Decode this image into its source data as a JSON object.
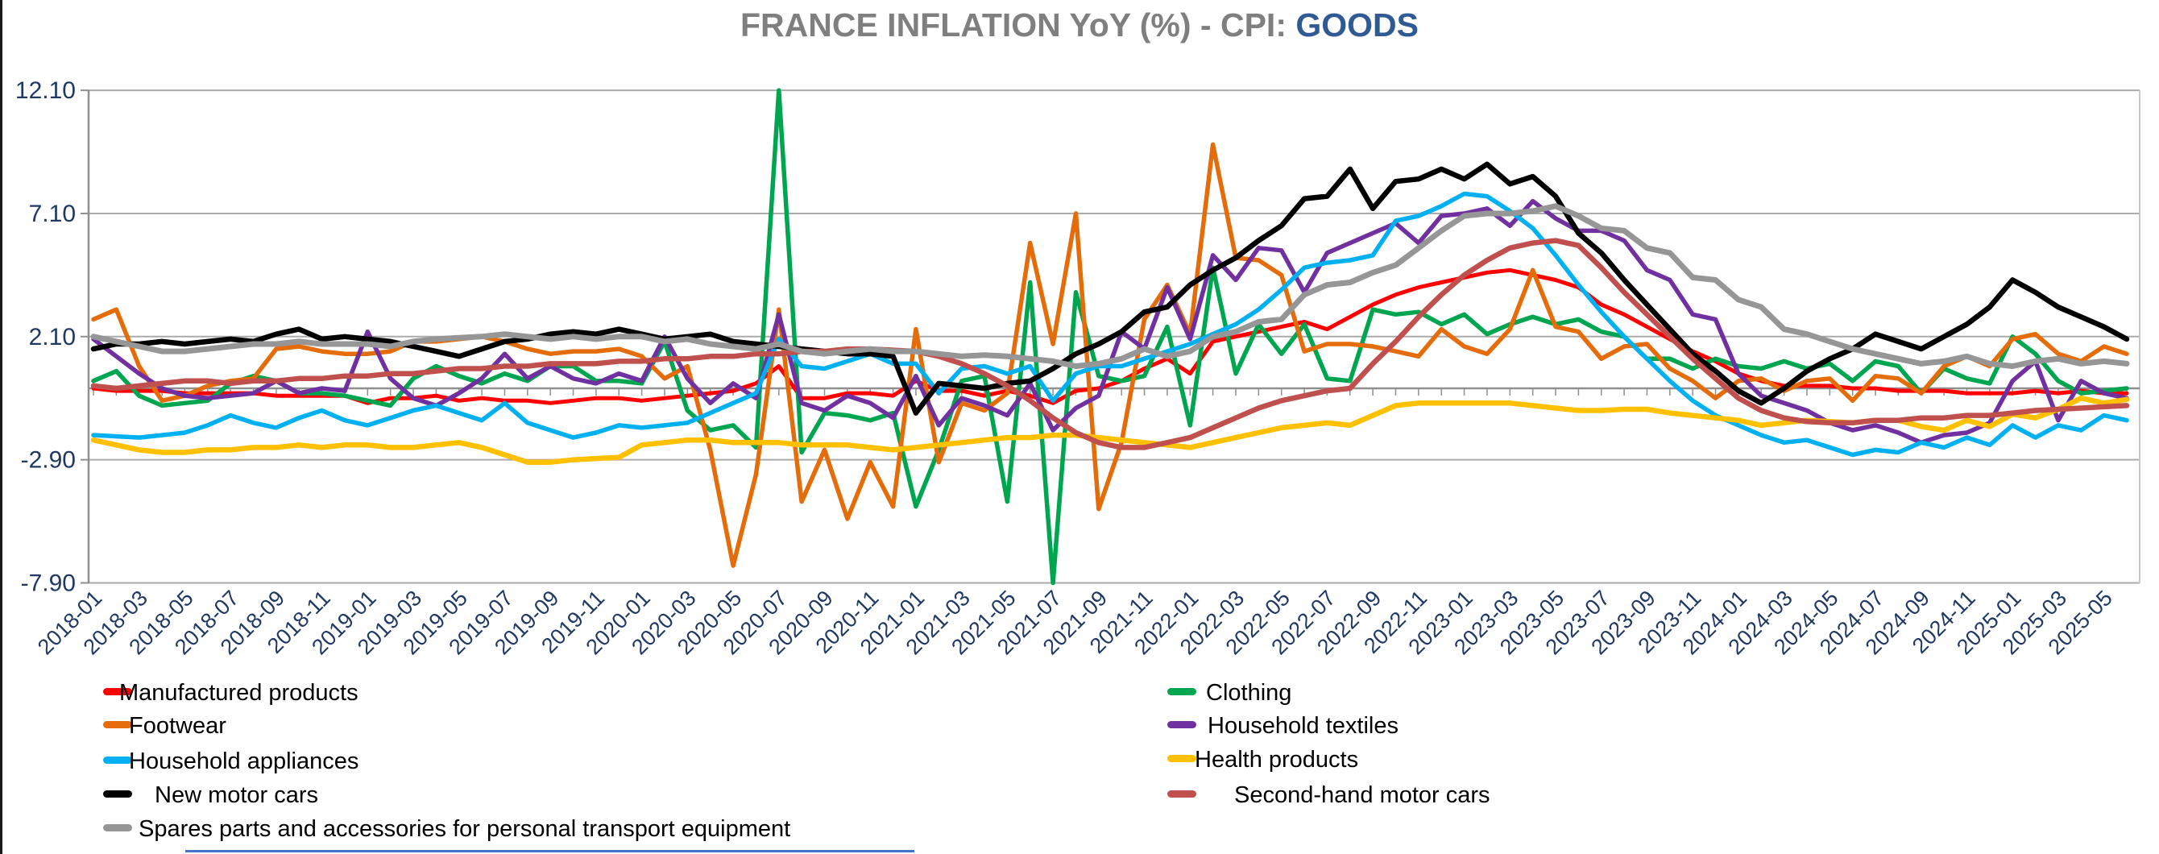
{
  "title": {
    "main": "FRANCE INFLATION YoY (%) - CPI: ",
    "accent": "GOODS"
  },
  "colors": {
    "title_gray": "#7F7F7F",
    "title_accent_blue": "#305A94",
    "axis_label_navy": "#1F3864",
    "gridline_gray": "#ABABAB",
    "axis_line_gray": "#8F8F8F",
    "bottom_accent_blue": "#4472C4"
  },
  "chart_data": {
    "type": "line",
    "title": "FRANCE INFLATION YoY (%) - CPI: GOODS",
    "xlabel": "",
    "ylabel": "",
    "x_start": "2018-01",
    "x_end": "2025-06",
    "months_total": 90,
    "grid": "horizontal-only",
    "legend_position": "bottom-two-columns",
    "ylim": [
      -7.9,
      12.1
    ],
    "y_ticks": [
      "12.10",
      "7.10",
      "2.10",
      "-2.90",
      "-7.90"
    ],
    "y_tick_values": [
      12.1,
      7.1,
      2.1,
      -2.9,
      -7.9
    ],
    "x_tick_labels": [
      "2018-01",
      "2018-03",
      "2018-05",
      "2018-07",
      "2018-09",
      "2018-11",
      "2019-01",
      "2019-03",
      "2019-05",
      "2019-07",
      "2019-09",
      "2019-11",
      "2020-01",
      "2020-03",
      "2020-05",
      "2020-07",
      "2020-09",
      "2020-11",
      "2021-01",
      "2021-03",
      "2021-05",
      "2021-07",
      "2021-09",
      "2021-11",
      "2022-01",
      "2022-03",
      "2022-05",
      "2022-07",
      "2022-09",
      "2022-11",
      "2023-01",
      "2023-03",
      "2023-05",
      "2023-07",
      "2023-09",
      "2023-11",
      "2024-01",
      "2024-03",
      "2024-05",
      "2024-07",
      "2024-09",
      "2024-11",
      "2025-01",
      "2025-03",
      "2025-05"
    ],
    "series": [
      {
        "name": "Manufactured products",
        "color": "#FF0000",
        "line_width": 5,
        "values": [
          0.0,
          -0.1,
          -0.1,
          -0.1,
          -0.2,
          -0.2,
          -0.2,
          -0.2,
          -0.3,
          -0.3,
          -0.3,
          -0.3,
          -0.6,
          -0.4,
          -0.4,
          -0.3,
          -0.5,
          -0.4,
          -0.5,
          -0.5,
          -0.6,
          -0.5,
          -0.4,
          -0.4,
          -0.5,
          -0.4,
          -0.3,
          -0.2,
          -0.1,
          0.2,
          0.9,
          -0.4,
          -0.4,
          -0.2,
          -0.2,
          -0.3,
          0.3,
          -0.1,
          -0.1,
          -0.3,
          -0.1,
          -0.3,
          -0.6,
          -0.1,
          0.0,
          0.3,
          0.8,
          1.2,
          0.6,
          1.9,
          2.1,
          2.3,
          2.5,
          2.7,
          2.4,
          2.9,
          3.4,
          3.8,
          4.1,
          4.3,
          4.5,
          4.7,
          4.8,
          4.6,
          4.4,
          4.1,
          3.4,
          3.0,
          2.5,
          2.0,
          1.5,
          1.1,
          0.6,
          0.3,
          0.1,
          0.1,
          0.1,
          0.0,
          0.0,
          -0.1,
          -0.1,
          -0.1,
          -0.2,
          -0.2,
          -0.2,
          -0.1,
          -0.2,
          -0.1,
          -0.2,
          -0.2
        ]
      },
      {
        "name": "Clothing",
        "color": "#00A550",
        "line_width": 5.5,
        "values": [
          0.3,
          0.7,
          -0.3,
          -0.7,
          -0.6,
          -0.5,
          0.2,
          0.5,
          0.3,
          -0.2,
          -0.2,
          -0.3,
          -0.5,
          -0.7,
          0.4,
          0.9,
          0.5,
          0.2,
          0.6,
          0.3,
          0.9,
          0.9,
          0.3,
          0.3,
          0.2,
          1.9,
          -0.9,
          -1.7,
          -1.5,
          -2.4,
          12.1,
          -2.6,
          -1.0,
          -1.1,
          -1.3,
          -1.0,
          -4.8,
          -2.5,
          0.3,
          0.5,
          -4.6,
          4.3,
          -7.9,
          3.9,
          0.5,
          0.3,
          0.5,
          2.5,
          -1.5,
          4.9,
          0.6,
          2.6,
          1.4,
          2.6,
          0.4,
          0.3,
          3.2,
          3.0,
          3.1,
          2.6,
          3.0,
          2.2,
          2.6,
          2.9,
          2.6,
          2.8,
          2.3,
          2.1,
          1.2,
          1.2,
          0.8,
          1.2,
          0.9,
          0.8,
          1.1,
          0.8,
          1.0,
          0.3,
          1.1,
          0.9,
          -0.2,
          0.8,
          0.4,
          0.2,
          2.1,
          1.4,
          0.3,
          -0.2,
          -0.1,
          0.0
        ]
      },
      {
        "name": "Footwear",
        "color": "#E46C0A",
        "line_width": 5.5,
        "values": [
          2.8,
          3.2,
          0.9,
          -0.5,
          -0.3,
          0.1,
          0.3,
          0.4,
          1.6,
          1.7,
          1.5,
          1.4,
          1.4,
          1.5,
          1.9,
          1.9,
          2.0,
          2.1,
          1.9,
          1.6,
          1.4,
          1.5,
          1.5,
          1.6,
          1.3,
          0.4,
          0.9,
          -2.5,
          -7.2,
          -3.5,
          3.2,
          -4.6,
          -2.5,
          -5.3,
          -3.0,
          -4.8,
          2.4,
          -3.0,
          -0.6,
          -0.9,
          -0.2,
          5.9,
          1.8,
          7.1,
          -4.9,
          -2.2,
          2.8,
          4.2,
          2.2,
          9.9,
          5.3,
          5.2,
          4.6,
          1.5,
          1.8,
          1.8,
          1.7,
          1.5,
          1.3,
          2.4,
          1.7,
          1.4,
          2.4,
          4.8,
          2.5,
          2.3,
          1.2,
          1.7,
          1.8,
          0.8,
          0.3,
          -0.4,
          0.3,
          0.4,
          -0.1,
          0.3,
          0.4,
          -0.5,
          0.5,
          0.4,
          -0.2,
          0.9,
          1.3,
          0.9,
          2.0,
          2.2,
          1.4,
          1.1,
          1.7,
          1.4
        ]
      },
      {
        "name": "Household textiles",
        "color": "#7030A0",
        "line_width": 5.5,
        "values": [
          2.0,
          1.3,
          0.6,
          0.0,
          -0.3,
          -0.4,
          -0.3,
          -0.2,
          0.3,
          -0.2,
          0.0,
          -0.1,
          2.3,
          0.4,
          -0.4,
          -0.7,
          -0.2,
          0.4,
          1.4,
          0.4,
          0.9,
          0.4,
          0.2,
          0.6,
          0.3,
          2.1,
          0.4,
          -0.6,
          0.2,
          -0.4,
          3.0,
          -0.6,
          -0.9,
          -0.3,
          -0.6,
          -1.2,
          0.5,
          -1.5,
          -0.4,
          -0.7,
          -1.1,
          0.2,
          -1.7,
          -0.8,
          -0.3,
          2.3,
          1.6,
          4.1,
          2.0,
          5.4,
          4.4,
          5.7,
          5.6,
          3.9,
          5.5,
          5.9,
          6.3,
          6.7,
          5.9,
          7.0,
          7.1,
          7.3,
          6.6,
          7.6,
          6.9,
          6.4,
          6.4,
          6.0,
          4.8,
          4.4,
          3.0,
          2.8,
          0.6,
          -0.3,
          -0.6,
          -0.9,
          -1.4,
          -1.7,
          -1.5,
          -1.8,
          -2.2,
          -1.9,
          -1.8,
          -1.4,
          0.3,
          1.1,
          -1.3,
          0.3,
          -0.2,
          -0.4
        ]
      },
      {
        "name": "Household appliances",
        "color": "#00B0F0",
        "line_width": 5.5,
        "values": [
          -1.9,
          -1.95,
          -2.0,
          -1.9,
          -1.8,
          -1.5,
          -1.1,
          -1.4,
          -1.6,
          -1.2,
          -0.9,
          -1.3,
          -1.5,
          -1.2,
          -0.9,
          -0.7,
          -1.0,
          -1.3,
          -0.6,
          -1.4,
          -1.7,
          -2.0,
          -1.8,
          -1.5,
          -1.6,
          -1.5,
          -1.4,
          -1.0,
          -0.6,
          -0.2,
          2.0,
          0.9,
          0.8,
          1.1,
          1.4,
          1.0,
          1.0,
          -0.2,
          0.8,
          0.9,
          0.6,
          0.9,
          -0.5,
          0.6,
          0.9,
          0.9,
          1.2,
          1.5,
          1.8,
          2.2,
          2.6,
          3.2,
          4.0,
          4.9,
          5.1,
          5.2,
          5.4,
          6.8,
          7.0,
          7.4,
          7.9,
          7.8,
          7.2,
          6.5,
          5.4,
          4.2,
          3.1,
          2.1,
          1.2,
          0.3,
          -0.5,
          -1.1,
          -1.5,
          -1.9,
          -2.2,
          -2.1,
          -2.4,
          -2.7,
          -2.5,
          -2.6,
          -2.2,
          -2.4,
          -2.0,
          -2.3,
          -1.5,
          -2.0,
          -1.5,
          -1.7,
          -1.1,
          -1.3
        ]
      },
      {
        "name": "Health products",
        "color": "#FFC000",
        "line_width": 6.5,
        "values": [
          -2.1,
          -2.3,
          -2.5,
          -2.6,
          -2.6,
          -2.5,
          -2.5,
          -2.4,
          -2.4,
          -2.3,
          -2.4,
          -2.3,
          -2.3,
          -2.4,
          -2.4,
          -2.3,
          -2.2,
          -2.4,
          -2.7,
          -3.0,
          -3.0,
          -2.9,
          -2.85,
          -2.8,
          -2.3,
          -2.2,
          -2.1,
          -2.1,
          -2.2,
          -2.2,
          -2.2,
          -2.3,
          -2.3,
          -2.3,
          -2.4,
          -2.5,
          -2.4,
          -2.3,
          -2.2,
          -2.1,
          -2.0,
          -2.0,
          -1.9,
          -1.9,
          -2.0,
          -2.1,
          -2.2,
          -2.3,
          -2.4,
          -2.2,
          -2.0,
          -1.8,
          -1.6,
          -1.5,
          -1.4,
          -1.5,
          -1.1,
          -0.7,
          -0.6,
          -0.6,
          -0.6,
          -0.6,
          -0.6,
          -0.7,
          -0.8,
          -0.9,
          -0.9,
          -0.85,
          -0.85,
          -1.0,
          -1.1,
          -1.2,
          -1.3,
          -1.5,
          -1.4,
          -1.3,
          -1.35,
          -1.4,
          -1.3,
          -1.3,
          -1.55,
          -1.7,
          -1.3,
          -1.55,
          -1.05,
          -1.2,
          -0.85,
          -0.4,
          -0.6,
          -0.45
        ]
      },
      {
        "name": "New motor cars",
        "color": "#000000",
        "line_width": 6.5,
        "values": [
          1.6,
          1.8,
          1.8,
          1.9,
          1.8,
          1.9,
          2.0,
          1.9,
          2.2,
          2.4,
          2.0,
          2.1,
          2.0,
          1.9,
          1.7,
          1.5,
          1.3,
          1.6,
          1.9,
          2.0,
          2.2,
          2.3,
          2.2,
          2.4,
          2.2,
          2.0,
          2.1,
          2.2,
          1.9,
          1.8,
          1.7,
          1.6,
          1.5,
          1.4,
          1.4,
          1.3,
          -1.0,
          0.2,
          0.1,
          0.0,
          0.2,
          0.3,
          0.8,
          1.4,
          1.8,
          2.3,
          3.1,
          3.3,
          4.2,
          4.8,
          5.3,
          6.0,
          6.6,
          7.7,
          7.8,
          8.9,
          7.3,
          8.4,
          8.5,
          8.9,
          8.5,
          9.1,
          8.3,
          8.6,
          7.8,
          6.3,
          5.5,
          4.4,
          3.4,
          2.4,
          1.4,
          0.7,
          -0.1,
          -0.6,
          0.0,
          0.7,
          1.2,
          1.6,
          2.2,
          1.9,
          1.6,
          2.1,
          2.6,
          3.3,
          4.4,
          3.9,
          3.3,
          2.9,
          2.5,
          2.0
        ]
      },
      {
        "name": "Second-hand motor cars",
        "color": "#C0504D",
        "line_width": 6.5,
        "values": [
          0.1,
          0.0,
          0.1,
          0.2,
          0.3,
          0.3,
          0.2,
          0.3,
          0.3,
          0.4,
          0.4,
          0.5,
          0.5,
          0.6,
          0.6,
          0.7,
          0.8,
          0.8,
          0.9,
          0.9,
          1.0,
          1.0,
          1.0,
          1.1,
          1.1,
          1.2,
          1.2,
          1.3,
          1.3,
          1.4,
          1.4,
          1.5,
          1.5,
          1.6,
          1.6,
          1.55,
          1.5,
          1.3,
          1.0,
          0.6,
          0.1,
          -0.5,
          -1.2,
          -1.8,
          -2.2,
          -2.4,
          -2.4,
          -2.2,
          -2.0,
          -1.6,
          -1.2,
          -0.8,
          -0.5,
          -0.3,
          -0.1,
          0.0,
          1.0,
          1.9,
          2.9,
          3.8,
          4.6,
          5.2,
          5.7,
          5.9,
          6.0,
          5.8,
          4.9,
          3.9,
          3.0,
          2.1,
          1.2,
          0.4,
          -0.4,
          -0.9,
          -1.2,
          -1.35,
          -1.4,
          -1.4,
          -1.3,
          -1.3,
          -1.2,
          -1.2,
          -1.1,
          -1.1,
          -1.0,
          -0.9,
          -0.85,
          -0.8,
          -0.75,
          -0.7
        ]
      },
      {
        "name": "Spares parts and accessories for personal transport equipment",
        "color": "#969696",
        "line_width": 7,
        "values": [
          2.1,
          1.9,
          1.7,
          1.5,
          1.5,
          1.6,
          1.7,
          1.8,
          1.8,
          1.9,
          1.8,
          1.8,
          1.8,
          1.7,
          1.9,
          2.0,
          2.05,
          2.1,
          2.2,
          2.1,
          2.0,
          2.1,
          2.0,
          2.1,
          2.1,
          1.9,
          2.0,
          1.8,
          1.7,
          1.6,
          1.8,
          1.5,
          1.4,
          1.5,
          1.6,
          1.5,
          1.5,
          1.4,
          1.3,
          1.35,
          1.3,
          1.2,
          1.1,
          0.9,
          1.0,
          1.2,
          1.6,
          1.3,
          1.5,
          2.1,
          2.3,
          2.7,
          2.8,
          3.8,
          4.2,
          4.3,
          4.7,
          5.0,
          5.7,
          6.4,
          7.0,
          7.1,
          7.1,
          7.2,
          7.4,
          7.0,
          6.5,
          6.4,
          5.7,
          5.5,
          4.5,
          4.4,
          3.6,
          3.3,
          2.4,
          2.2,
          1.9,
          1.6,
          1.4,
          1.2,
          1.0,
          1.1,
          1.3,
          1.0,
          0.9,
          1.1,
          1.2,
          1.0,
          1.1,
          1.0
        ]
      }
    ]
  },
  "legend": {
    "left_column": [
      "Manufactured products",
      "Footwear",
      "Household appliances",
      "New motor cars",
      "Spares parts and accessories for personal transport equipment"
    ],
    "right_column": [
      "Clothing",
      "Household textiles",
      "Health products",
      "Second-hand motor cars"
    ]
  }
}
